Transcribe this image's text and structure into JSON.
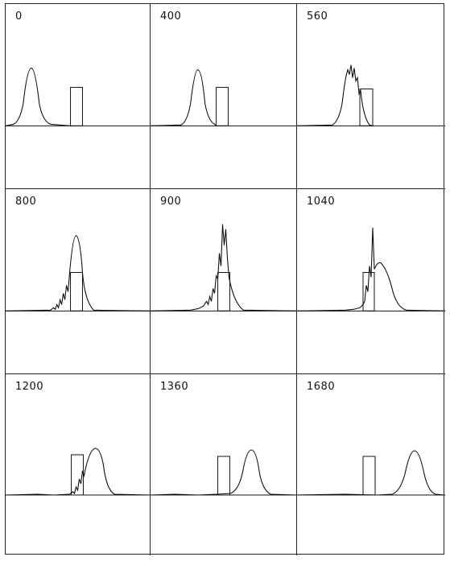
{
  "figure": {
    "panels": [
      {
        "label": "0"
      },
      {
        "label": "400"
      },
      {
        "label": "560"
      },
      {
        "label": "800"
      },
      {
        "label": "900"
      },
      {
        "label": "1040"
      },
      {
        "label": "1200"
      },
      {
        "label": "1360"
      },
      {
        "label": "1680"
      }
    ]
  },
  "colors": {
    "line": "#111111",
    "background": "#ffffff"
  }
}
